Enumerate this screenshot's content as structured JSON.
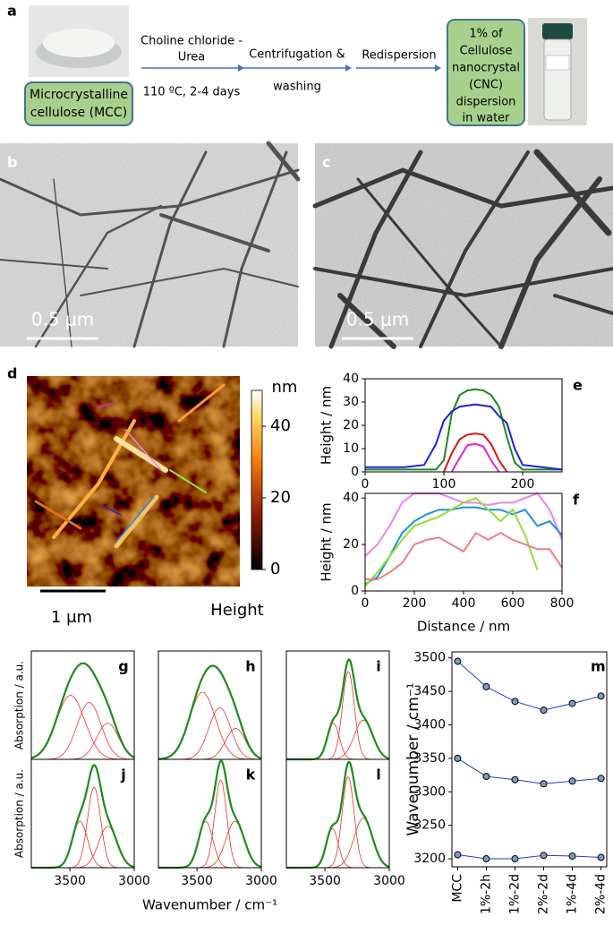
{
  "panel_a": {
    "label": "a",
    "start_box": [
      "Microcrystalline",
      "cellulose (MCC)"
    ],
    "step1_reagent": [
      "Choline chloride -",
      "Urea"
    ],
    "step1_conditions": "110 ºC, 2-4 days",
    "step2": [
      "Centrifugation &",
      "washing"
    ],
    "step3": "Redispersion",
    "end_box": [
      "1% of",
      "Cellulose",
      "nanocrystal",
      "(CNC)",
      "dispersion",
      "in water"
    ]
  },
  "panel_b": {
    "label": "b",
    "scale_bar": "0.5 μm"
  },
  "panel_c": {
    "label": "c",
    "scale_bar": "0.5 μm"
  },
  "panel_d": {
    "label": "d",
    "colorbar_unit": "nm",
    "colorbar_lim": [
      0,
      50
    ],
    "colorbar_ticks": [
      0,
      20,
      40
    ],
    "scale_bar": "1 μm",
    "channel": "Height"
  },
  "chart_data": [
    {
      "type": "line",
      "label": "e",
      "ylabel": "Height / nm",
      "x": [
        0,
        25,
        50,
        75,
        90,
        100,
        110,
        120,
        130,
        140,
        150,
        160,
        170,
        180,
        190,
        200,
        225,
        250
      ],
      "xlim": [
        0,
        250
      ],
      "xticks": [
        0,
        100,
        200
      ],
      "ylim": [
        0,
        40
      ],
      "yticks": [
        0,
        10,
        20,
        30,
        40
      ],
      "series": [
        {
          "color": "#1a8a1a",
          "values": [
            1,
            1,
            1,
            1,
            1,
            5,
            25,
            33,
            35,
            35.5,
            35,
            33,
            28,
            15,
            4,
            1,
            1,
            1
          ]
        },
        {
          "color": "#1f1fe0",
          "values": [
            2,
            2,
            2,
            3,
            12,
            22,
            26,
            28,
            28.5,
            29,
            28.5,
            28,
            24,
            21,
            10,
            3,
            2,
            1
          ]
        },
        {
          "color": "#e01010",
          "values": [
            null,
            null,
            null,
            null,
            null,
            0,
            8,
            14,
            16,
            16.5,
            16,
            12,
            5,
            0,
            null,
            null,
            null,
            null
          ]
        },
        {
          "color": "#e020e0",
          "values": [
            null,
            null,
            null,
            null,
            null,
            null,
            0,
            6,
            11.5,
            12,
            11,
            5,
            0,
            null,
            null,
            null,
            null,
            null
          ]
        }
      ]
    },
    {
      "type": "line",
      "label": "f",
      "ylabel": "Height / nm",
      "xlabel": "Distance / nm",
      "x": [
        0,
        50,
        100,
        150,
        200,
        250,
        300,
        350,
        400,
        450,
        500,
        550,
        600,
        650,
        700,
        750,
        800
      ],
      "xlim": [
        0,
        800
      ],
      "xticks": [
        0,
        200,
        400,
        600,
        800
      ],
      "ylim": [
        0,
        42
      ],
      "yticks": [
        0,
        20,
        40
      ],
      "series": [
        {
          "color": "#ee82ee",
          "values": [
            15,
            20,
            28,
            38,
            42,
            42,
            42,
            40,
            38,
            38,
            37,
            38,
            38,
            40,
            42,
            35,
            22
          ]
        },
        {
          "color": "#2090e0",
          "values": [
            3,
            6,
            15,
            25,
            30,
            33,
            35,
            35,
            36,
            36,
            35,
            35,
            33,
            35,
            28,
            30,
            24
          ]
        },
        {
          "color": "#90e030",
          "values": [
            2,
            8,
            15,
            22,
            28,
            30,
            32,
            35,
            38,
            40,
            35,
            30,
            35,
            24,
            9,
            null,
            null
          ]
        },
        {
          "color": "#ee8080",
          "values": [
            5,
            5,
            8,
            12,
            20,
            22,
            23,
            20,
            17,
            25,
            22,
            25,
            22,
            20,
            18,
            18,
            10
          ]
        }
      ]
    },
    {
      "type": "spectrum",
      "label": "g",
      "ylabel": "Absorption / a.u.",
      "xlim": [
        3800,
        3000
      ],
      "ylim": [
        0,
        1.05
      ],
      "fit_color": "#1e8a1e",
      "component_color": "#e8352a",
      "peaks": {
        "center": [
          3495,
          3350,
          3206
        ],
        "height": [
          0.62,
          0.55,
          0.35
        ],
        "fwhm": [
          260,
          220,
          200
        ]
      }
    },
    {
      "type": "spectrum",
      "label": "h",
      "xlim": [
        3800,
        3000
      ],
      "ylim": [
        0,
        1.05
      ],
      "fit_color": "#1e8a1e",
      "component_color": "#e8352a",
      "peaks": {
        "center": [
          3457,
          3323,
          3200
        ],
        "height": [
          0.65,
          0.5,
          0.3
        ],
        "fwhm": [
          240,
          200,
          180
        ]
      }
    },
    {
      "type": "spectrum",
      "label": "i",
      "xlim": [
        3800,
        3000
      ],
      "ylim": [
        0,
        1.05
      ],
      "fit_color": "#1e8a1e",
      "component_color": "#e8352a",
      "peaks": {
        "center": [
          3435,
          3318,
          3200
        ],
        "height": [
          0.35,
          0.85,
          0.38
        ],
        "fwhm": [
          110,
          110,
          170
        ]
      }
    },
    {
      "type": "spectrum",
      "label": "j",
      "ylabel": "Absorption / a.u.",
      "xlim": [
        3800,
        3000
      ],
      "xticks": [
        3500,
        3000
      ],
      "ylim": [
        0,
        1.05
      ],
      "fit_color": "#1e8a1e",
      "component_color": "#e8352a",
      "peaks": {
        "center": [
          3422,
          3312,
          3205
        ],
        "height": [
          0.45,
          0.78,
          0.4
        ],
        "fwhm": [
          140,
          120,
          170
        ]
      }
    },
    {
      "type": "spectrum",
      "label": "k",
      "xlabel": "Wavenumber / cm⁻¹",
      "xlim": [
        3800,
        3000
      ],
      "xticks": [
        3500,
        3000
      ],
      "ylim": [
        0,
        1.05
      ],
      "fit_color": "#1e8a1e",
      "component_color": "#e8352a",
      "peaks": {
        "center": [
          3432,
          3316,
          3204
        ],
        "height": [
          0.45,
          0.85,
          0.45
        ],
        "fwhm": [
          130,
          110,
          170
        ]
      }
    },
    {
      "type": "spectrum",
      "label": "l",
      "xlim": [
        3800,
        3000
      ],
      "xticks": [
        3500,
        3000
      ],
      "ylim": [
        0,
        1.05
      ],
      "fit_color": "#1e8a1e",
      "component_color": "#e8352a",
      "peaks": {
        "center": [
          3443,
          3320,
          3202
        ],
        "height": [
          0.38,
          0.88,
          0.48
        ],
        "fwhm": [
          110,
          110,
          170
        ]
      }
    },
    {
      "type": "point-line",
      "label": "m",
      "ylabel": "Wavenumber / cm⁻¹",
      "categories": [
        "MCC",
        "1%-2h",
        "1%-2d",
        "2%-2d",
        "1%-4d",
        "2%-4d"
      ],
      "ylim": [
        3188,
        3509
      ],
      "yticks": [
        3200,
        3250,
        3300,
        3350,
        3400,
        3450,
        3500
      ],
      "marker_color": "#7a9cc6",
      "series": [
        {
          "color": "#1f3fd0",
          "values": [
            3495,
            3457,
            3435,
            3422,
            3432,
            3443
          ]
        },
        {
          "color": "#1f3fd0",
          "values": [
            3350,
            3323,
            3318,
            3312,
            3316,
            3320
          ]
        },
        {
          "color": "#1f3fd0",
          "values": [
            3206,
            3200,
            3200,
            3205,
            3204,
            3202
          ]
        }
      ]
    }
  ]
}
